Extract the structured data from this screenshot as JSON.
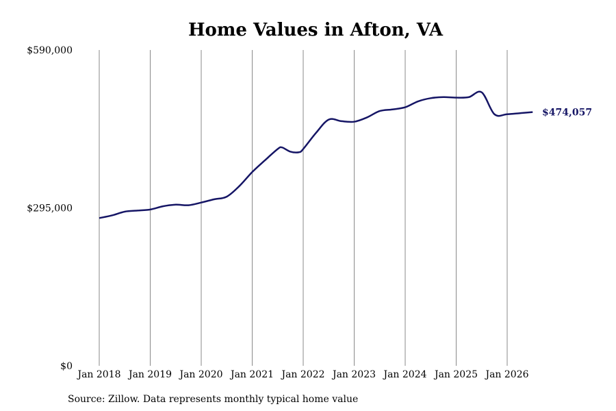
{
  "chart_data": {
    "type": "line",
    "title": "Home Values in Afton, VA",
    "xlabel": "",
    "ylabel": "",
    "y_ticks": [
      "$0",
      "$295,000",
      "$590,000"
    ],
    "x_ticks": [
      "Jan 2018",
      "Jan 2019",
      "Jan 2020",
      "Jan 2021",
      "Jan 2022",
      "Jan 2023",
      "Jan 2024",
      "Jan 2025",
      "Jan 2026"
    ],
    "ylim": [
      0,
      590000
    ],
    "xlim": [
      "2018-01",
      "2026-07"
    ],
    "grid": "vertical",
    "end_label": "$474,057",
    "source": "Source: Zillow. Data represents monthly typical home value",
    "colors": {
      "line": "#151565",
      "grid": "#888888"
    },
    "series": [
      {
        "x": [
          "2018-01",
          "2018-04",
          "2018-07",
          "2018-10",
          "2019-01",
          "2019-04",
          "2019-07",
          "2019-10",
          "2020-01",
          "2020-04",
          "2020-07",
          "2020-10",
          "2021-01",
          "2021-04",
          "2021-07",
          "2021-08",
          "2021-10",
          "2021-12",
          "2022-01",
          "2022-04",
          "2022-07",
          "2022-10",
          "2023-01",
          "2023-04",
          "2023-07",
          "2023-10",
          "2024-01",
          "2024-04",
          "2024-07",
          "2024-10",
          "2025-01",
          "2025-04",
          "2025-07",
          "2025-10",
          "2026-01",
          "2026-04",
          "2026-07"
        ],
        "values": [
          276000,
          281000,
          288000,
          290000,
          292000,
          298000,
          301000,
          300000,
          305000,
          311000,
          316000,
          336000,
          362000,
          384000,
          405000,
          408000,
          400000,
          399000,
          405000,
          435000,
          460000,
          457000,
          456000,
          464000,
          476000,
          479000,
          483000,
          494000,
          500000,
          502000,
          501000,
          502000,
          511000,
          470000,
          470000,
          472000,
          474057
        ]
      }
    ]
  }
}
